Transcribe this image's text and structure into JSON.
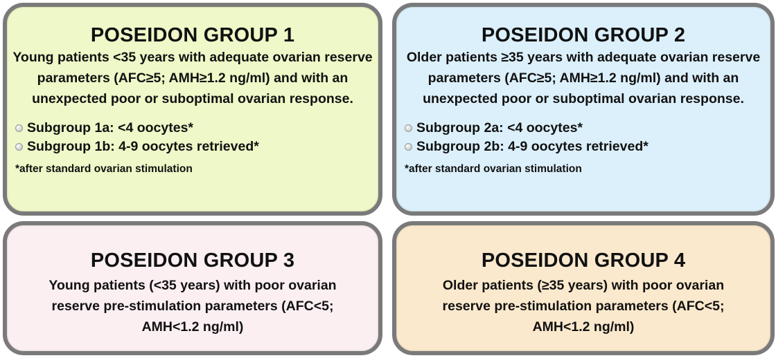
{
  "colors": {
    "group1_bg": "#eef8c8",
    "group2_bg": "#dcf0fb",
    "group3_bg": "#fbeff2",
    "group4_bg": "#fbe9cd",
    "border": "#7a7a7a"
  },
  "groups": [
    {
      "title": "POSEIDON GROUP 1",
      "description": "Young patients <35 years with adequate ovarian reserve parameters (AFC≥5; AMH≥1.2 ng/ml) and with an unexpected poor or suboptimal ovarian response.",
      "subgroups": [
        "Subgroup 1a: <4 oocytes*",
        "Subgroup 1b: 4-9 oocytes retrieved*"
      ],
      "note": "*after standard ovarian stimulation"
    },
    {
      "title": "POSEIDON GROUP 2",
      "description": "Older patients ≥35 years with adequate ovarian reserve parameters (AFC≥5; AMH≥1.2 ng/ml) and with an unexpected poor or suboptimal ovarian response.",
      "subgroups": [
        "Subgroup 2a: <4 oocytes*",
        "Subgroup 2b: 4-9 oocytes retrieved*"
      ],
      "note": "*after standard ovarian stimulation"
    },
    {
      "title": "POSEIDON GROUP 3",
      "description": "Young patients (<35 years) with poor ovarian reserve pre-stimulation parameters (AFC<5; AMH<1.2 ng/ml)"
    },
    {
      "title": "POSEIDON GROUP 4",
      "description": "Older patients (≥35 years) with poor ovarian reserve pre-stimulation parameters (AFC<5; AMH<1.2 ng/ml)"
    }
  ]
}
